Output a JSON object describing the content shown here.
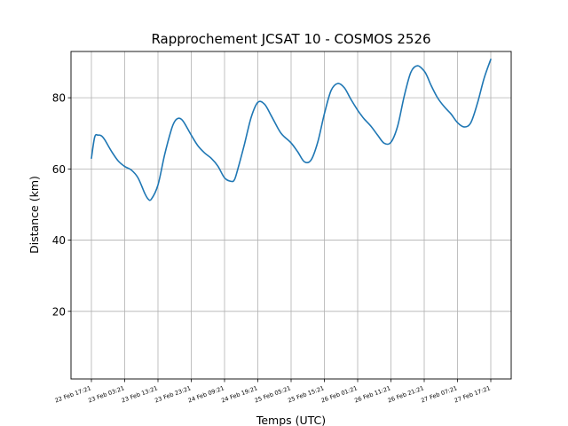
{
  "chart_data": {
    "type": "line",
    "title": "Rapprochement JCSAT 10 - COSMOS 2526",
    "xlabel": "Temps (UTC)",
    "ylabel": "Distance (km)",
    "grid": true,
    "line_color": "#1f77b4",
    "x_ticks": [
      "22 Feb 17:21",
      "23 Feb 03:21",
      "23 Feb 13:21",
      "23 Feb 23:21",
      "24 Feb 09:21",
      "24 Feb 19:21",
      "25 Feb 05:21",
      "25 Feb 15:21",
      "26 Feb 01:21",
      "26 Feb 11:21",
      "26 Feb 21:21",
      "27 Feb 07:21",
      "27 Feb 17:21"
    ],
    "y_ticks": [
      20,
      40,
      60,
      80
    ],
    "ylim": [
      1,
      93
    ],
    "x_unit": "hours",
    "series": [
      {
        "x": [
          0,
          1,
          2,
          3,
          4,
          6,
          8,
          10,
          12,
          14,
          16,
          17,
          18,
          20,
          22,
          24,
          25,
          26,
          27,
          28,
          30,
          32,
          34,
          36,
          38,
          40,
          42,
          43,
          44,
          46,
          48,
          50,
          52,
          54,
          56,
          57,
          58,
          60,
          62,
          64,
          66,
          68,
          70,
          72,
          74,
          76,
          78,
          80,
          81,
          82,
          84,
          86,
          88,
          90,
          92,
          94,
          96,
          98,
          100,
          101,
          102,
          104,
          106,
          108,
          110,
          112,
          114,
          116,
          118,
          120
        ],
        "y": [
          63,
          69,
          69.5,
          69.3,
          68.2,
          65,
          62.3,
          60.7,
          59.7,
          57.5,
          53.2,
          51.6,
          51.5,
          55.5,
          64,
          71,
          73.3,
          74.2,
          74,
          72.8,
          69.5,
          66.5,
          64.5,
          63,
          60.8,
          57.5,
          56.5,
          57,
          60,
          67,
          74.5,
          78.7,
          78.2,
          75,
          71.5,
          70,
          69,
          67.3,
          64.8,
          62,
          62.5,
          67.5,
          75.5,
          82,
          84,
          82.8,
          79.5,
          76.5,
          75.2,
          74,
          72,
          69.5,
          67.2,
          67.5,
          72,
          80.5,
          87.2,
          89,
          87.5,
          85.8,
          83.6,
          80,
          77.5,
          75.5,
          73,
          71.8,
          73,
          78.5,
          85.5,
          90.8
        ]
      }
    ]
  }
}
